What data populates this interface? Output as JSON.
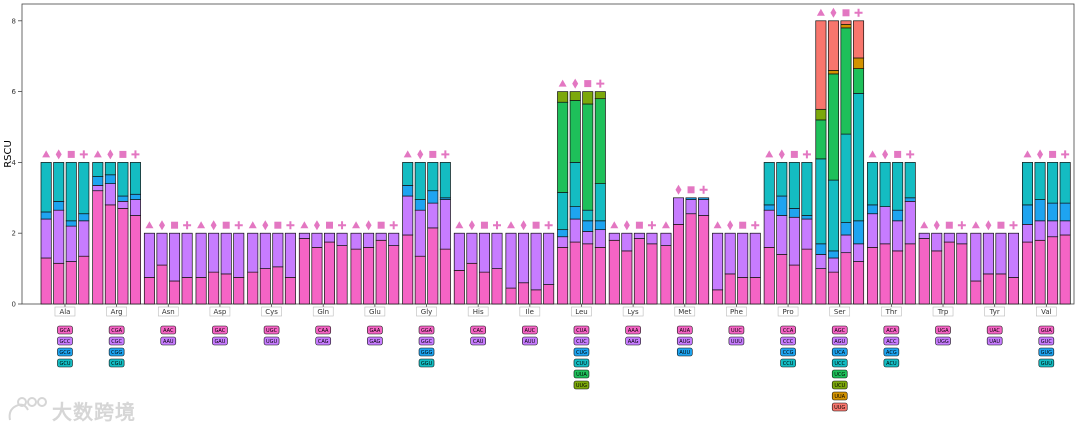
{
  "chart_data": {
    "type": "bar",
    "subtype": "stacked-bar-groups",
    "ylabel": "RSCU",
    "ylim": [
      0,
      8.3
    ],
    "yticks": [
      0,
      2,
      4,
      6,
      8
    ],
    "samples_per_group": 4,
    "marker_shapes": [
      "triangle",
      "diamond",
      "square",
      "plus"
    ],
    "marker_color": "#e377c2",
    "codon_colors": [
      "#f564c5",
      "#c77cff",
      "#1ea4f0",
      "#14bcc2",
      "#1ec05a",
      "#7ca80c",
      "#d39200",
      "#f8766d"
    ],
    "groups": [
      {
        "aa": "Ala",
        "codons": [
          "GCA",
          "GCC",
          "GCG",
          "GCU"
        ],
        "rscu": [
          [
            1.3,
            1.1,
            0.2,
            1.4
          ],
          [
            1.15,
            1.5,
            0.25,
            1.1
          ],
          [
            1.2,
            1.0,
            0.15,
            1.65
          ],
          [
            1.35,
            1.0,
            0.2,
            1.45
          ]
        ]
      },
      {
        "aa": "Arg",
        "codons": [
          "CGA",
          "CGC",
          "CGG",
          "CGU"
        ],
        "rscu": [
          [
            3.2,
            0.15,
            0.25,
            0.4
          ],
          [
            2.8,
            0.6,
            0.25,
            0.35
          ],
          [
            2.7,
            0.2,
            0.15,
            0.95
          ],
          [
            2.5,
            0.45,
            0.15,
            0.9
          ]
        ]
      },
      {
        "aa": "Asn",
        "codons": [
          "AAC",
          "AAU"
        ],
        "rscu": [
          [
            0.75,
            1.25
          ],
          [
            1.1,
            0.9
          ],
          [
            0.65,
            1.35
          ],
          [
            0.75,
            1.25
          ]
        ]
      },
      {
        "aa": "Asp",
        "codons": [
          "GAC",
          "GAU"
        ],
        "rscu": [
          [
            0.75,
            1.25
          ],
          [
            0.9,
            1.1
          ],
          [
            0.85,
            1.15
          ],
          [
            0.75,
            1.25
          ]
        ]
      },
      {
        "aa": "Cys",
        "codons": [
          "UGC",
          "UGU"
        ],
        "rscu": [
          [
            0.9,
            1.1
          ],
          [
            1.0,
            1.0
          ],
          [
            1.05,
            0.95
          ],
          [
            0.75,
            1.25
          ]
        ]
      },
      {
        "aa": "Gln",
        "codons": [
          "CAA",
          "CAG"
        ],
        "rscu": [
          [
            1.85,
            0.15
          ],
          [
            1.6,
            0.4
          ],
          [
            1.75,
            0.25
          ],
          [
            1.65,
            0.35
          ]
        ]
      },
      {
        "aa": "Glu",
        "codons": [
          "GAA",
          "GAG"
        ],
        "rscu": [
          [
            1.55,
            0.45
          ],
          [
            1.6,
            0.4
          ],
          [
            1.8,
            0.2
          ],
          [
            1.65,
            0.35
          ]
        ]
      },
      {
        "aa": "Gly",
        "codons": [
          "GGA",
          "GGC",
          "GGG",
          "GGU"
        ],
        "rscu": [
          [
            1.95,
            1.1,
            0.3,
            0.65
          ],
          [
            1.35,
            1.3,
            0.3,
            1.05
          ],
          [
            2.15,
            0.7,
            0.35,
            0.8
          ],
          [
            1.55,
            1.4,
            0.05,
            1.0
          ]
        ]
      },
      {
        "aa": "His",
        "codons": [
          "CAC",
          "CAU"
        ],
        "rscu": [
          [
            0.95,
            1.05
          ],
          [
            1.15,
            0.85
          ],
          [
            0.9,
            1.1
          ],
          [
            1.0,
            1.0
          ]
        ]
      },
      {
        "aa": "Ile",
        "codons": [
          "AUC",
          "AUU"
        ],
        "rscu": [
          [
            0.45,
            1.55
          ],
          [
            0.6,
            1.4
          ],
          [
            0.4,
            1.6
          ],
          [
            0.55,
            1.45
          ]
        ]
      },
      {
        "aa": "Leu",
        "codons": [
          "CUA",
          "CUC",
          "CUG",
          "CUU",
          "UUA",
          "UUG"
        ],
        "rscu": [
          [
            1.6,
            0.3,
            0.2,
            1.05,
            2.55,
            0.3
          ],
          [
            1.75,
            0.65,
            0.35,
            1.25,
            1.75,
            0.25
          ],
          [
            1.7,
            0.35,
            0.3,
            0.3,
            3.0,
            0.35
          ],
          [
            1.6,
            0.5,
            0.25,
            1.05,
            2.4,
            0.2
          ]
        ]
      },
      {
        "aa": "Lys",
        "codons": [
          "AAA",
          "AAG"
        ],
        "rscu": [
          [
            1.8,
            0.2
          ],
          [
            1.5,
            0.5
          ],
          [
            1.85,
            0.15
          ],
          [
            1.7,
            0.3
          ]
        ]
      },
      {
        "aa": "Met",
        "codons": [
          "AUA",
          "AUG",
          "AUU"
        ],
        "rscu": [
          [
            1.65,
            0.35,
            0.0
          ],
          [
            2.25,
            0.75,
            0.0
          ],
          [
            2.55,
            0.4,
            0.05
          ],
          [
            2.5,
            0.45,
            0.05
          ]
        ]
      },
      {
        "aa": "Phe",
        "codons": [
          "UUC",
          "UUU"
        ],
        "rscu": [
          [
            0.4,
            1.6
          ],
          [
            0.85,
            1.15
          ],
          [
            0.75,
            1.25
          ],
          [
            0.75,
            1.25
          ]
        ]
      },
      {
        "aa": "Pro",
        "codons": [
          "CCA",
          "CCC",
          "CCG",
          "CCU"
        ],
        "rscu": [
          [
            1.6,
            1.05,
            0.15,
            1.2
          ],
          [
            1.4,
            1.1,
            0.55,
            0.95
          ],
          [
            1.1,
            1.35,
            0.25,
            1.3
          ],
          [
            1.55,
            0.85,
            0.1,
            1.5
          ]
        ]
      },
      {
        "aa": "Ser",
        "codons": [
          "AGC",
          "AGU",
          "UCA",
          "UCC",
          "UCG",
          "UCU",
          "UUA",
          "UUG"
        ],
        "rscu": [
          [
            1.0,
            0.4,
            0.3,
            2.4,
            1.1,
            0.3,
            0.0,
            2.5
          ],
          [
            0.9,
            0.4,
            0.2,
            2.0,
            3.0,
            0.0,
            0.1,
            1.4
          ],
          [
            1.45,
            0.5,
            0.35,
            2.5,
            3.0,
            0.0,
            0.1,
            0.1
          ],
          [
            1.2,
            0.5,
            0.65,
            3.6,
            0.7,
            0.0,
            0.3,
            1.05
          ]
        ]
      },
      {
        "aa": "Thr",
        "codons": [
          "ACA",
          "ACC",
          "ACG",
          "ACU"
        ],
        "rscu": [
          [
            1.6,
            0.95,
            0.25,
            1.2
          ],
          [
            1.7,
            1.05,
            0.0,
            1.25
          ],
          [
            1.5,
            0.85,
            0.3,
            1.35
          ],
          [
            1.7,
            1.2,
            0.1,
            1.0
          ]
        ]
      },
      {
        "aa": "Trp",
        "codons": [
          "UGA",
          "UGG"
        ],
        "rscu": [
          [
            1.85,
            0.15
          ],
          [
            1.5,
            0.5
          ],
          [
            1.75,
            0.25
          ],
          [
            1.7,
            0.3
          ]
        ]
      },
      {
        "aa": "Tyr",
        "codons": [
          "UAC",
          "UAU"
        ],
        "rscu": [
          [
            0.65,
            1.35
          ],
          [
            0.85,
            1.15
          ],
          [
            0.85,
            1.15
          ],
          [
            0.75,
            1.25
          ]
        ]
      },
      {
        "aa": "Val",
        "codons": [
          "GUA",
          "GUC",
          "GUG",
          "GUU"
        ],
        "rscu": [
          [
            1.75,
            0.5,
            0.55,
            1.2
          ],
          [
            1.8,
            0.55,
            0.6,
            1.05
          ],
          [
            1.9,
            0.45,
            0.5,
            1.15
          ],
          [
            1.95,
            0.4,
            0.5,
            1.15
          ]
        ]
      }
    ]
  },
  "watermark": "大数跨境"
}
